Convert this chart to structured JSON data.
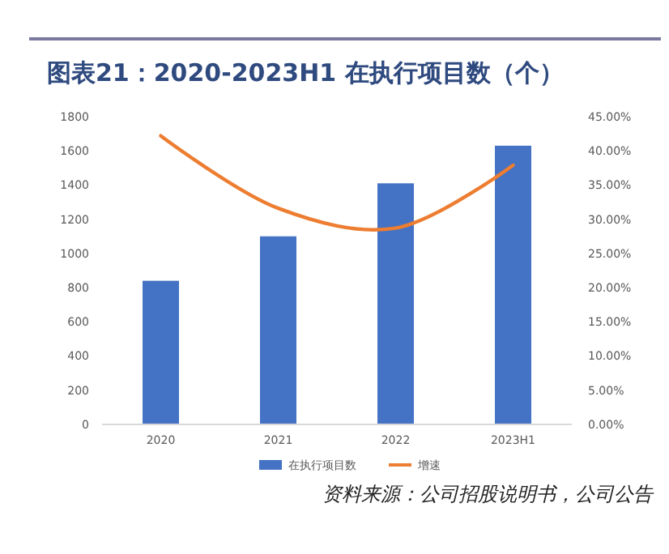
{
  "chart_data": {
    "type": "bar",
    "title": "图表21：2020-2023H1 在执行项目数（个）",
    "categories": [
      "2020",
      "2021",
      "2022",
      "2023H1"
    ],
    "series": [
      {
        "name": "在执行项目数",
        "color": "#4472c4",
        "values": [
          840,
          1100,
          1410,
          1630
        ]
      },
      {
        "name": "增速",
        "type": "line",
        "axis": "y2",
        "color": "#ed7d31",
        "values": [
          42.2,
          31.6,
          28.7,
          37.9
        ]
      }
    ],
    "ylim": [
      0,
      1800
    ],
    "yticks": [
      0,
      200,
      400,
      600,
      800,
      1000,
      1200,
      1400,
      1600,
      1800
    ],
    "y2lim": [
      0,
      45
    ],
    "y2ticks": [
      {
        "value": 0,
        "label": "0.00%"
      },
      {
        "value": 5,
        "label": "5.00%"
      },
      {
        "value": 10,
        "label": "10.00%"
      },
      {
        "value": 15,
        "label": "15.00%"
      },
      {
        "value": 20,
        "label": "20.00%"
      },
      {
        "value": 25,
        "label": "25.00%"
      },
      {
        "value": 30,
        "label": "30.00%"
      },
      {
        "value": 35,
        "label": "35.00%"
      },
      {
        "value": 40,
        "label": "40.00%"
      },
      {
        "value": 45,
        "label": "45.00%"
      }
    ],
    "legend": "bottom",
    "grid": false,
    "annotations": [
      "资料来源：公司招股说明书，公司公告"
    ]
  }
}
